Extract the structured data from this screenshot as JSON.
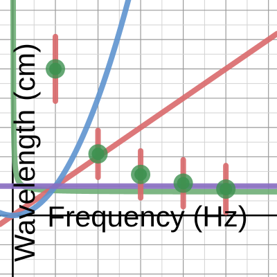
{
  "chart_data": {
    "type": "scatter",
    "title": "",
    "xlabel": "Frequency (Hz)",
    "ylabel": "Wavelength (cm)",
    "xlim": [
      -0.3,
      6.2
    ],
    "ylim": [
      -2.1,
      7.35
    ],
    "grid": true,
    "points": [
      {
        "x": 1,
        "y": 5,
        "err": 1.1
      },
      {
        "x": 2,
        "y": 2.1,
        "err": 0.8
      },
      {
        "x": 3,
        "y": 1.4,
        "err": 0.8
      },
      {
        "x": 4,
        "y": 1.1,
        "err": 0.8
      },
      {
        "x": 5,
        "y": 0.9,
        "err": 0.8
      }
    ],
    "series": [
      {
        "name": "",
        "kind": "reciprocal",
        "a": 0.05,
        "b": 0.8,
        "color": "#6fae77"
      },
      {
        "name": "",
        "kind": "linear",
        "m": 1.0,
        "c": 0.0,
        "color": "#d9696b"
      },
      {
        "name": "",
        "kind": "quadratic",
        "k": 1.0,
        "color": "#5e94cf"
      },
      {
        "name": "",
        "kind": "constant",
        "y": 1.0,
        "color": "#8a6ec2"
      }
    ],
    "colors": {
      "points": "#3d9150",
      "error_bars": "#d9696b"
    }
  }
}
